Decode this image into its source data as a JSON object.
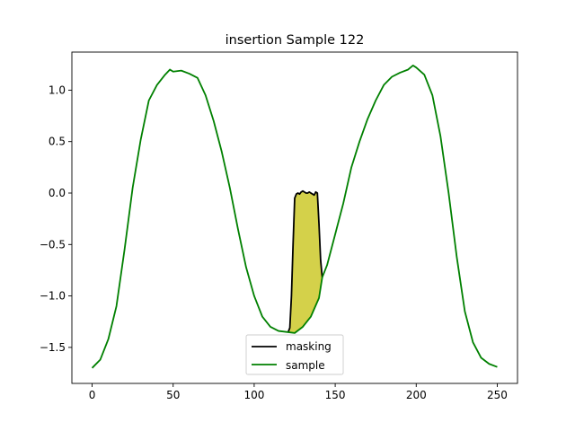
{
  "chart_data": {
    "type": "line",
    "title": "insertion Sample 122",
    "xlabel": "",
    "ylabel": "",
    "xlim": [
      -12.5,
      262.5
    ],
    "ylim": [
      -1.85,
      1.37
    ],
    "xticks": [
      0,
      50,
      100,
      150,
      200,
      250
    ],
    "yticks": [
      -1.5,
      -1.0,
      -0.5,
      0.0,
      0.5,
      1.0
    ],
    "xtick_labels": [
      "0",
      "50",
      "100",
      "150",
      "200",
      "250"
    ],
    "ytick_labels": [
      "−1.5",
      "−1.0",
      "−0.5",
      "0.0",
      "0.5",
      "1.0"
    ],
    "grid": false,
    "legend_position": "lower-center",
    "series": [
      {
        "name": "masking",
        "color": "#000000",
        "x": [
          121,
          122,
          123,
          124,
          125,
          126,
          127,
          128,
          129,
          130,
          131,
          132,
          133,
          134,
          135,
          136,
          137,
          138,
          139,
          140,
          141,
          142
        ],
        "y": [
          -1.35,
          -1.31,
          -1.0,
          -0.5,
          -0.05,
          -0.01,
          0.0,
          -0.01,
          0.01,
          0.02,
          0.01,
          0.0,
          0.0,
          0.01,
          0.0,
          -0.01,
          -0.02,
          0.01,
          0.0,
          -0.3,
          -0.65,
          -0.82
        ]
      },
      {
        "name": "sample",
        "color": "#008000",
        "x": [
          0,
          5,
          10,
          15,
          20,
          25,
          30,
          35,
          40,
          45,
          48,
          50,
          55,
          60,
          65,
          70,
          75,
          80,
          85,
          90,
          95,
          100,
          105,
          110,
          115,
          120,
          125,
          130,
          135,
          140,
          142,
          145,
          150,
          155,
          160,
          165,
          170,
          175,
          180,
          185,
          190,
          195,
          198,
          200,
          205,
          210,
          215,
          220,
          225,
          230,
          235,
          240,
          245,
          250
        ],
        "y": [
          -1.7,
          -1.62,
          -1.42,
          -1.1,
          -0.55,
          0.05,
          0.52,
          0.9,
          1.05,
          1.15,
          1.2,
          1.18,
          1.19,
          1.16,
          1.12,
          0.95,
          0.7,
          0.4,
          0.05,
          -0.35,
          -0.72,
          -1.0,
          -1.2,
          -1.3,
          -1.34,
          -1.35,
          -1.36,
          -1.3,
          -1.2,
          -1.02,
          -0.82,
          -0.7,
          -0.4,
          -0.1,
          0.25,
          0.5,
          0.72,
          0.9,
          1.05,
          1.13,
          1.17,
          1.2,
          1.24,
          1.22,
          1.15,
          0.95,
          0.55,
          0.0,
          -0.62,
          -1.15,
          -1.45,
          -1.6,
          -1.66,
          -1.69
        ]
      }
    ],
    "fill_region": {
      "color": "#d4d14a",
      "x_start": 121,
      "x_end": 142
    }
  }
}
